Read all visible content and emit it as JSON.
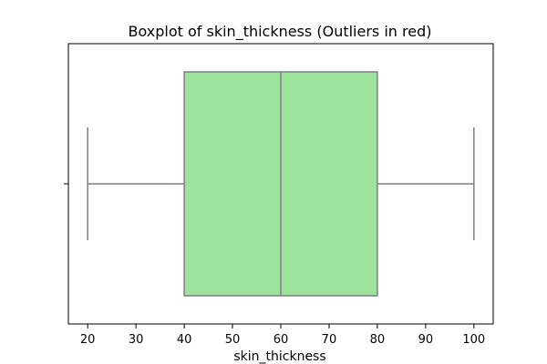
{
  "chart_data": {
    "type": "boxplot",
    "title": "Boxplot of skin_thickness (Outliers in red)",
    "xlabel": "skin_thickness",
    "ylabel": "",
    "xlim": [
      16,
      104
    ],
    "x_ticks": [
      20,
      30,
      40,
      50,
      60,
      70,
      80,
      90,
      100
    ],
    "orientation": "horizontal",
    "box": {
      "whisker_low": 20,
      "q1": 40,
      "median": 60,
      "q3": 80,
      "whisker_high": 100,
      "outliers": []
    },
    "colors": {
      "box_fill": "#9de39e",
      "line": "#7f7f7f",
      "outlier": "#ff0000"
    }
  }
}
